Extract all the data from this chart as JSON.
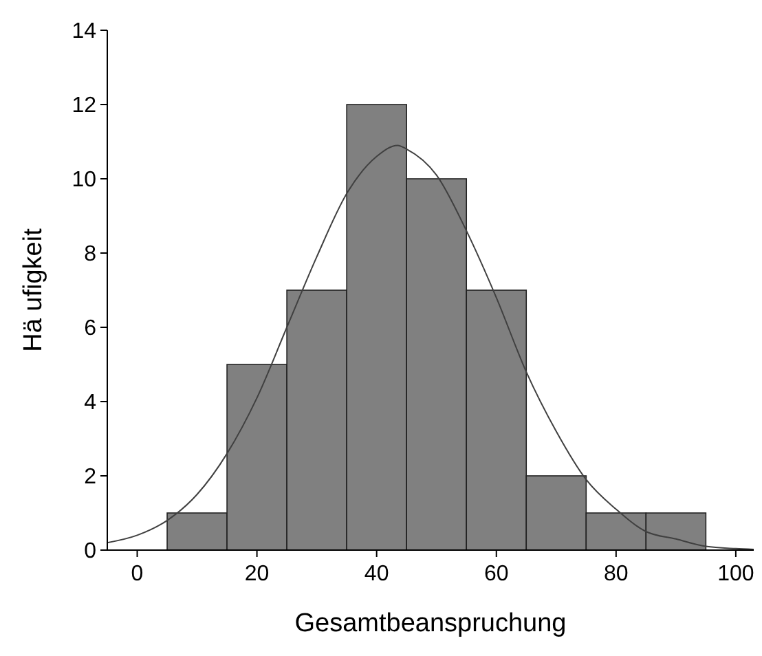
{
  "chart_data": {
    "type": "histogram",
    "xlabel": "Gesamtbeanspruchung",
    "ylabel": "Hä ufigkeit",
    "bins": [
      5,
      15,
      25,
      35,
      45,
      55,
      65,
      75,
      85,
      95
    ],
    "values": [
      1,
      5,
      7,
      12,
      10,
      7,
      2,
      1,
      1
    ],
    "color": "#808080",
    "series": [
      {
        "type": "line",
        "color": "#404040",
        "x": [
          -5,
          0,
          5,
          10,
          15,
          20,
          25,
          30,
          35,
          40,
          43.5,
          45,
          50,
          55,
          60,
          65,
          70,
          75,
          80,
          85,
          90,
          95,
          100,
          103
        ],
        "values": [
          0.2,
          0.4,
          0.8,
          1.5,
          2.6,
          4.1,
          6.0,
          7.9,
          9.6,
          10.6,
          10.9,
          10.8,
          10.1,
          8.6,
          6.8,
          4.8,
          3.2,
          1.9,
          1.1,
          0.5,
          0.3,
          0.1,
          0.04,
          0.02
        ]
      }
    ],
    "xlim": [
      -5,
      103
    ],
    "xticks": [
      0,
      20,
      40,
      60,
      80,
      100
    ],
    "ylim": [
      0,
      14
    ],
    "yticks": [
      0,
      2,
      4,
      6,
      8,
      10,
      12,
      14
    ]
  }
}
